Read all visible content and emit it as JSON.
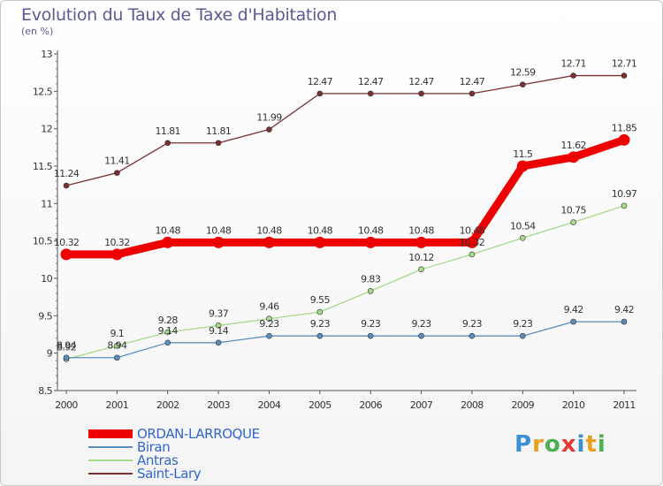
{
  "title": "Evolution du Taux de Taxe d'Habitation",
  "subtitle": "(en %)",
  "brand": {
    "letters": [
      "P",
      "r",
      "o",
      "x",
      "i",
      "t",
      "i"
    ],
    "colors": [
      "#3a8fd6",
      "#e8a020",
      "#4caf50",
      "#e53935",
      "#3a8fd6",
      "#e8a020",
      "#4caf50"
    ]
  },
  "chart_data": {
    "type": "line",
    "title": "Evolution du Taux de Taxe d'Habitation",
    "subtitle": "(en %)",
    "xlabel": "",
    "ylabel": "",
    "categories": [
      "2000",
      "2001",
      "2002",
      "2003",
      "2004",
      "2005",
      "2006",
      "2007",
      "2008",
      "2009",
      "2010",
      "2011"
    ],
    "ylim": [
      8.5,
      13
    ],
    "yticks": [
      "8.5",
      "9",
      "9.5",
      "10",
      "10.5",
      "11",
      "11.5",
      "12",
      "12.5",
      "13"
    ],
    "grid": false,
    "legend_position": "bottom-left",
    "series": [
      {
        "name": "ORDAN-LARROQUE",
        "color": "#ee0000",
        "legend_color": "#3366cc",
        "labels": [
          "10.32",
          "10.32",
          "10.48",
          "10.48",
          "10.48",
          "10.48",
          "10.48",
          "10.48",
          "10.48",
          "11.5",
          "11.62",
          "11.85"
        ],
        "values": [
          10.32,
          10.32,
          10.48,
          10.48,
          10.48,
          10.48,
          10.48,
          10.48,
          10.48,
          11.5,
          11.62,
          11.85
        ]
      },
      {
        "name": "Biran",
        "color": "#5b8dbd",
        "legend_color": "#3366cc",
        "labels": [
          "8.94",
          "8.94",
          "9.14",
          "9.14",
          "9.23",
          "9.23",
          "9.23",
          "9.23",
          "9.23",
          "9.23",
          "9.42",
          "9.42"
        ],
        "values": [
          8.94,
          8.94,
          9.14,
          9.14,
          9.23,
          9.23,
          9.23,
          9.23,
          9.23,
          9.23,
          9.42,
          9.42
        ]
      },
      {
        "name": "Antras",
        "color": "#a6d98c",
        "legend_color": "#3366cc",
        "labels": [
          "8.92",
          "9.1",
          "9.28",
          "9.37",
          "9.46",
          "9.55",
          "9.83",
          "10.12",
          "10.32",
          "10.54",
          "10.75",
          "10.97"
        ],
        "values": [
          8.92,
          9.1,
          9.28,
          9.37,
          9.46,
          9.55,
          9.83,
          10.12,
          10.32,
          10.54,
          10.75,
          10.97
        ]
      },
      {
        "name": "Saint-Lary",
        "color": "#7a3030",
        "legend_color": "#3366cc",
        "labels": [
          "11.24",
          "11.41",
          "11.81",
          "11.81",
          "11.99",
          "12.47",
          "12.47",
          "12.47",
          "12.47",
          "12.59",
          "12.71",
          "12.71"
        ],
        "values": [
          11.24,
          11.41,
          11.81,
          11.81,
          11.99,
          12.47,
          12.47,
          12.47,
          12.47,
          12.59,
          12.71,
          12.71
        ]
      }
    ]
  }
}
